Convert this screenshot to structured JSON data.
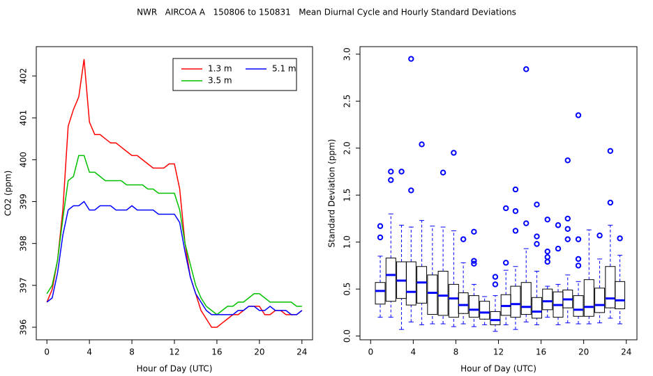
{
  "chart_data": [
    {
      "type": "line",
      "title": "NWR   AIRCOA A   150806 to 150831   Mean Diurnal Cycle and Hourly Standard Deviations",
      "x_label": "Hour of Day (UTC)",
      "y_label": "CO2 (ppm)",
      "x": [
        0,
        0.5,
        1,
        1.5,
        2,
        2.5,
        3,
        3.5,
        4,
        4.5,
        5,
        5.5,
        6,
        6.5,
        7,
        7.5,
        8,
        8.5,
        9,
        9.5,
        10,
        10.5,
        11,
        11.5,
        12,
        12.5,
        13,
        13.5,
        14,
        14.5,
        15,
        15.5,
        16,
        16.5,
        17,
        17.5,
        18,
        18.5,
        19,
        19.5,
        20,
        20.5,
        21,
        21.5,
        22,
        22.5,
        23,
        23.5,
        24
      ],
      "series": [
        {
          "name": "1.3 m",
          "color": "#ff0000",
          "values": [
            396.6,
            396.9,
            397.6,
            398.8,
            400.8,
            401.2,
            401.5,
            402.4,
            400.9,
            400.6,
            400.6,
            400.5,
            400.4,
            400.4,
            400.3,
            400.2,
            400.1,
            400.1,
            400.0,
            399.9,
            399.8,
            399.8,
            399.8,
            399.9,
            399.9,
            399.3,
            398.0,
            397.2,
            396.8,
            396.4,
            396.2,
            396.0,
            396.0,
            396.1,
            396.2,
            396.3,
            396.3,
            396.4,
            396.5,
            396.5,
            396.5,
            396.3,
            396.3,
            396.4,
            396.4,
            396.3,
            396.3,
            396.3,
            396.4
          ]
        },
        {
          "name": "3.5 m",
          "color": "#00c000",
          "values": [
            396.8,
            397.0,
            397.6,
            398.6,
            399.5,
            399.6,
            400.1,
            400.1,
            399.7,
            399.7,
            399.6,
            399.5,
            399.5,
            399.5,
            399.5,
            399.4,
            399.4,
            399.4,
            399.4,
            399.3,
            399.3,
            399.2,
            399.2,
            399.2,
            399.2,
            398.8,
            398.0,
            397.5,
            397.0,
            396.7,
            396.5,
            396.4,
            396.3,
            396.4,
            396.5,
            396.5,
            396.6,
            396.6,
            396.7,
            396.8,
            396.8,
            396.7,
            396.6,
            396.6,
            396.6,
            396.6,
            396.6,
            396.5,
            396.5
          ]
        },
        {
          "name": "5.1 m",
          "color": "#0000ff",
          "values": [
            396.6,
            396.7,
            397.3,
            398.2,
            398.8,
            398.9,
            398.9,
            399.0,
            398.8,
            398.8,
            398.9,
            398.9,
            398.9,
            398.8,
            398.8,
            398.8,
            398.9,
            398.8,
            398.8,
            398.8,
            398.8,
            398.7,
            398.7,
            398.7,
            398.7,
            398.5,
            397.8,
            397.2,
            396.8,
            396.6,
            396.4,
            396.3,
            396.3,
            396.3,
            396.3,
            396.3,
            396.4,
            396.4,
            396.5,
            396.5,
            396.4,
            396.4,
            396.5,
            396.4,
            396.4,
            396.4,
            396.3,
            396.3,
            396.4
          ]
        }
      ],
      "xlim": [
        -1,
        25
      ],
      "ylim": [
        395.7,
        402.7
      ],
      "xticks": [
        0,
        4,
        8,
        12,
        16,
        20,
        24
      ],
      "yticks": [
        396,
        397,
        398,
        399,
        400,
        401,
        402
      ]
    },
    {
      "type": "box",
      "x_label": "Hour of Day (UTC)",
      "y_label": "Standard Deviation (ppm)",
      "color": "#0000ff",
      "x": [
        0.9,
        1.9,
        2.9,
        3.8,
        4.8,
        5.8,
        6.8,
        7.8,
        8.7,
        9.7,
        10.7,
        11.7,
        12.7,
        13.6,
        14.6,
        15.6,
        16.6,
        17.6,
        18.5,
        19.5,
        20.5,
        21.5,
        22.5,
        23.4
      ],
      "boxes": [
        {
          "low": 0.2,
          "q1": 0.34,
          "median": 0.48,
          "q3": 0.57,
          "high": 0.85,
          "outliers": [
            1.05,
            1.17
          ]
        },
        {
          "low": 0.2,
          "q1": 0.37,
          "median": 0.65,
          "q3": 0.83,
          "high": 1.3,
          "outliers": [
            1.66,
            1.75
          ]
        },
        {
          "low": 0.07,
          "q1": 0.4,
          "median": 0.59,
          "q3": 0.79,
          "high": 1.18,
          "outliers": [
            1.75
          ]
        },
        {
          "low": 0.15,
          "q1": 0.33,
          "median": 0.47,
          "q3": 0.79,
          "high": 1.16,
          "outliers": [
            1.55,
            2.95
          ]
        },
        {
          "low": 0.12,
          "q1": 0.35,
          "median": 0.57,
          "q3": 0.74,
          "high": 1.23,
          "outliers": [
            2.04
          ]
        },
        {
          "low": 0.13,
          "q1": 0.23,
          "median": 0.46,
          "q3": 0.65,
          "high": 1.17,
          "outliers": []
        },
        {
          "low": 0.13,
          "q1": 0.22,
          "median": 0.43,
          "q3": 0.69,
          "high": 1.16,
          "outliers": [
            1.74
          ]
        },
        {
          "low": 0.1,
          "q1": 0.2,
          "median": 0.4,
          "q3": 0.55,
          "high": 1.12,
          "outliers": [
            1.95
          ]
        },
        {
          "low": 0.13,
          "q1": 0.24,
          "median": 0.33,
          "q3": 0.46,
          "high": 0.78,
          "outliers": [
            1.03
          ]
        },
        {
          "low": 0.1,
          "q1": 0.2,
          "median": 0.28,
          "q3": 0.43,
          "high": 0.55,
          "outliers": [
            0.77,
            0.8,
            1.11
          ]
        },
        {
          "low": 0.12,
          "q1": 0.18,
          "median": 0.25,
          "q3": 0.37,
          "high": 0.42,
          "outliers": []
        },
        {
          "low": 0.05,
          "q1": 0.12,
          "median": 0.17,
          "q3": 0.26,
          "high": 0.43,
          "outliers": [
            0.55,
            0.63
          ]
        },
        {
          "low": 0.12,
          "q1": 0.22,
          "median": 0.32,
          "q3": 0.44,
          "high": 0.7,
          "outliers": [
            0.78,
            1.36
          ]
        },
        {
          "low": 0.07,
          "q1": 0.2,
          "median": 0.34,
          "q3": 0.53,
          "high": 0.74,
          "outliers": [
            1.12,
            1.33,
            1.56
          ]
        },
        {
          "low": 0.15,
          "q1": 0.23,
          "median": 0.31,
          "q3": 0.57,
          "high": 0.93,
          "outliers": [
            1.2,
            2.84
          ]
        },
        {
          "low": 0.12,
          "q1": 0.19,
          "median": 0.26,
          "q3": 0.41,
          "high": 0.69,
          "outliers": [
            0.98,
            1.06,
            1.4
          ]
        },
        {
          "low": 0.2,
          "q1": 0.28,
          "median": 0.37,
          "q3": 0.5,
          "high": 0.53,
          "outliers": [
            0.79,
            0.84,
            0.9,
            1.24
          ]
        },
        {
          "low": 0.12,
          "q1": 0.2,
          "median": 0.33,
          "q3": 0.47,
          "high": 0.55,
          "outliers": [
            0.93,
            1.18
          ]
        },
        {
          "low": 0.14,
          "q1": 0.3,
          "median": 0.39,
          "q3": 0.49,
          "high": 0.65,
          "outliers": [
            1.03,
            1.14,
            1.25,
            1.87
          ]
        },
        {
          "low": 0.13,
          "q1": 0.21,
          "median": 0.28,
          "q3": 0.43,
          "high": 0.58,
          "outliers": [
            0.75,
            0.82,
            1.03,
            2.35
          ]
        },
        {
          "low": 0.13,
          "q1": 0.21,
          "median": 0.31,
          "q3": 0.6,
          "high": 1.13,
          "outliers": []
        },
        {
          "low": 0.14,
          "q1": 0.25,
          "median": 0.33,
          "q3": 0.51,
          "high": 0.82,
          "outliers": [
            1.07
          ]
        },
        {
          "low": 0.19,
          "q1": 0.3,
          "median": 0.4,
          "q3": 0.74,
          "high": 1.18,
          "outliers": [
            1.42,
            1.97
          ]
        },
        {
          "low": 0.13,
          "q1": 0.29,
          "median": 0.38,
          "q3": 0.58,
          "high": 0.86,
          "outliers": [
            1.04
          ]
        }
      ],
      "xlim": [
        -1,
        25
      ],
      "ylim": [
        -0.04,
        3.08
      ],
      "xticks": [
        0,
        4,
        8,
        12,
        16,
        20,
        24
      ],
      "yticks": [
        {
          "value": 0,
          "label": "0.0"
        },
        0.5,
        {
          "value": 1,
          "label": "1.0"
        },
        1.5,
        {
          "value": 2,
          "label": "2.0"
        },
        2.5,
        {
          "value": 3,
          "label": "3.0"
        }
      ]
    }
  ]
}
